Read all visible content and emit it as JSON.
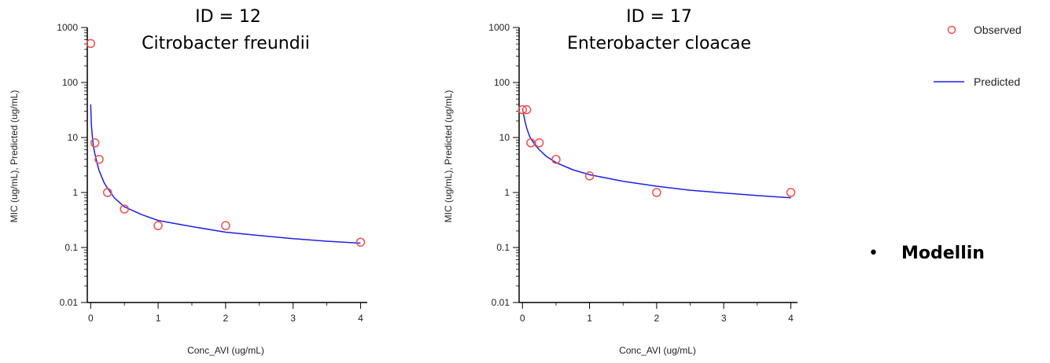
{
  "colors": {
    "observed": "#f05050",
    "predicted": "#2020e0",
    "axis": "#000000",
    "text": "#222222"
  },
  "legend": {
    "observed_label": "Observed",
    "predicted_label": "Predicted"
  },
  "bullet": {
    "symbol": "•",
    "text": "Modellin"
  },
  "chart_data": [
    {
      "type": "scatter",
      "title": "ID = 12",
      "subtitle": "Citrobacter freundii",
      "xlabel": "Conc_AVI (ug/mL)",
      "ylabel": "MIC (ug/mL), Predicted (ug/mL)",
      "x_scale": "linear",
      "y_scale": "log",
      "xlim": [
        -0.05,
        4.1
      ],
      "ylim": [
        0.01,
        1000
      ],
      "x_ticks": [
        0,
        1,
        2,
        3,
        4
      ],
      "x_tick_labels": [
        "0",
        "1",
        "2",
        "3",
        "4"
      ],
      "y_ticks": [
        0.01,
        0.1,
        1,
        10,
        100,
        1000
      ],
      "y_tick_labels": [
        "0.01",
        "0.1",
        "1",
        "10",
        "100",
        "1000"
      ],
      "grid": false,
      "series": [
        {
          "name": "Observed",
          "kind": "markers",
          "marker": "open-circle",
          "x": [
            0,
            0.0625,
            0.125,
            0.25,
            0.5,
            1,
            2,
            4
          ],
          "y": [
            512,
            8,
            4,
            1,
            0.5,
            0.25,
            0.25,
            0.125
          ]
        },
        {
          "name": "Predicted",
          "kind": "line",
          "x": [
            0,
            0.01,
            0.02,
            0.04,
            0.0625,
            0.1,
            0.125,
            0.2,
            0.25,
            0.35,
            0.5,
            0.75,
            1,
            1.5,
            2,
            2.5,
            3,
            3.5,
            4
          ],
          "y": [
            40,
            18,
            12,
            7,
            5,
            3.2,
            2.5,
            1.5,
            1.2,
            0.8,
            0.55,
            0.4,
            0.31,
            0.24,
            0.19,
            0.165,
            0.145,
            0.13,
            0.12
          ]
        }
      ]
    },
    {
      "type": "scatter",
      "title": "ID = 17",
      "subtitle": "Enterobacter cloacae",
      "xlabel": "Conc_AVI (ug/mL)",
      "ylabel": "MIC (ug/mL), Predicted (ug/mL)",
      "x_scale": "linear",
      "y_scale": "log",
      "xlim": [
        -0.05,
        4.1
      ],
      "ylim": [
        0.01,
        1000
      ],
      "x_ticks": [
        0,
        1,
        2,
        3,
        4
      ],
      "x_tick_labels": [
        "0",
        "1",
        "2",
        "3",
        "4"
      ],
      "y_ticks": [
        0.01,
        0.1,
        1,
        10,
        100,
        1000
      ],
      "y_tick_labels": [
        "0.01",
        "0.1",
        "1",
        "10",
        "100",
        "1000"
      ],
      "grid": false,
      "series": [
        {
          "name": "Observed",
          "kind": "markers",
          "marker": "open-circle",
          "x": [
            0,
            0.0625,
            0.125,
            0.25,
            0.5,
            1,
            2,
            4
          ],
          "y": [
            32,
            32,
            8,
            8,
            4,
            2,
            1,
            1
          ]
        },
        {
          "name": "Predicted",
          "kind": "line",
          "x": [
            0,
            0.01,
            0.02,
            0.04,
            0.0625,
            0.1,
            0.125,
            0.2,
            0.25,
            0.35,
            0.5,
            0.75,
            1,
            1.5,
            2,
            2.5,
            3,
            3.5,
            4
          ],
          "y": [
            34,
            29,
            25,
            19,
            15,
            11,
            9.5,
            7,
            6,
            4.6,
            3.5,
            2.6,
            2.1,
            1.6,
            1.3,
            1.1,
            0.98,
            0.88,
            0.8
          ]
        }
      ]
    }
  ]
}
